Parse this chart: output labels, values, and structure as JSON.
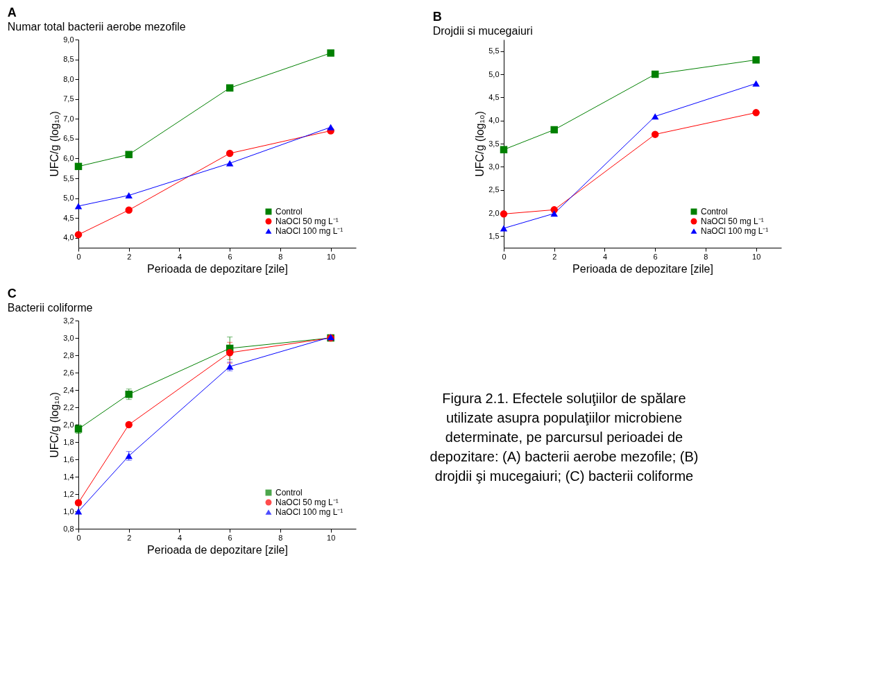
{
  "chart_data": [
    {
      "type": "line",
      "title": "Numar total bacterii aerobe mezofile",
      "annotations": [
        "A"
      ],
      "xlabel": "Perioada de depozitare [zile]",
      "ylabel": "UFC/g (log₁₀)",
      "x": [
        0,
        2,
        6,
        10
      ],
      "xlim": [
        0,
        11
      ],
      "xticks": [
        0,
        2,
        4,
        6,
        8,
        10
      ],
      "ylim": [
        3.75,
        9.0
      ],
      "yticks": [
        {
          "value": 4,
          "label": "4,0"
        },
        {
          "value": 4.5,
          "label": "4,5"
        },
        {
          "value": 5,
          "label": "5,0"
        },
        {
          "value": 5.5,
          "label": "5,5"
        },
        {
          "value": 6,
          "label": "6,0"
        },
        {
          "value": 6.5,
          "label": "6,5"
        },
        {
          "value": 7,
          "label": "7,0"
        },
        {
          "value": 7.5,
          "label": "7,5"
        },
        {
          "value": 8,
          "label": "8,0"
        },
        {
          "value": 8.5,
          "label": "8,5"
        },
        {
          "value": 9,
          "label": "9,0"
        }
      ],
      "grid": false,
      "legend": "bottom right",
      "line_style": "solid",
      "series": [
        {
          "name": "Control",
          "color": "#008000",
          "marker": "square",
          "values": [
            5.8,
            6.1,
            7.78,
            8.66
          ]
        },
        {
          "name": "NaOCl 50 mg L⁻¹",
          "color": "#ff0000",
          "marker": "circle",
          "values": [
            4.08,
            4.7,
            6.13,
            6.7
          ]
        },
        {
          "name": "NaOCl 100 mg L⁻¹",
          "color": "#0000ff",
          "marker": "triangle",
          "values": [
            4.8,
            5.07,
            5.88,
            6.79
          ]
        }
      ]
    },
    {
      "type": "line",
      "title": "Drojdii si mucegaiuri",
      "annotations": [
        "B"
      ],
      "xlabel": "Perioada de depozitare [zile]",
      "ylabel": "UFC/g (log₁₀)",
      "x": [
        0,
        2,
        6,
        10
      ],
      "xlim": [
        0,
        11
      ],
      "xticks": [
        0,
        2,
        4,
        6,
        8,
        10
      ],
      "ylim": [
        1.25,
        5.75
      ],
      "yticks": [
        {
          "value": 1.5,
          "label": "1,5"
        },
        {
          "value": 2,
          "label": "2,0"
        },
        {
          "value": 2.5,
          "label": "2,5"
        },
        {
          "value": 3,
          "label": "3,0"
        },
        {
          "value": 3.5,
          "label": "3,5"
        },
        {
          "value": 4,
          "label": "4,0"
        },
        {
          "value": 4.5,
          "label": "4,5"
        },
        {
          "value": 5,
          "label": "5,0"
        },
        {
          "value": 5.5,
          "label": "5,5"
        }
      ],
      "grid": false,
      "legend": "bottom right",
      "line_style": "solid",
      "series": [
        {
          "name": "Control",
          "color": "#008000",
          "marker": "square",
          "values": [
            3.37,
            3.8,
            5.0,
            5.31
          ]
        },
        {
          "name": "NaOCl 50 mg L⁻¹",
          "color": "#ff0000",
          "marker": "circle",
          "values": [
            1.98,
            2.07,
            3.7,
            4.17
          ]
        },
        {
          "name": "NaOCl 100 mg L⁻¹",
          "color": "#0000ff",
          "marker": "triangle",
          "values": [
            1.67,
            1.99,
            4.09,
            4.8
          ]
        }
      ]
    },
    {
      "type": "line",
      "title": "Bacterii coliforme",
      "annotations": [
        "C"
      ],
      "xlabel": "Perioada de depozitare [zile]",
      "ylabel": "UFC/g (log₁₀)",
      "x": [
        0,
        2,
        6,
        10
      ],
      "xlim": [
        0,
        11
      ],
      "xticks": [
        0,
        2,
        4,
        6,
        8,
        10
      ],
      "ylim": [
        0.8,
        3.2
      ],
      "yticks": [
        {
          "value": 0.8,
          "label": "0,8"
        },
        {
          "value": 1,
          "label": "1,0"
        },
        {
          "value": 1.2,
          "label": "1,2"
        },
        {
          "value": 1.4,
          "label": "1,4"
        },
        {
          "value": 1.6,
          "label": "1,6"
        },
        {
          "value": 1.8,
          "label": "1,8"
        },
        {
          "value": 2,
          "label": "2,0"
        },
        {
          "value": 2.2,
          "label": "2,2"
        },
        {
          "value": 2.4,
          "label": "2,4"
        },
        {
          "value": 2.6,
          "label": "2,6"
        },
        {
          "value": 2.8,
          "label": "2,8"
        },
        {
          "value": 3,
          "label": "3,0"
        },
        {
          "value": 3.2,
          "label": "3,2"
        }
      ],
      "grid": false,
      "legend": "bottom right",
      "line_style": "solid",
      "series": [
        {
          "name": "Control",
          "color": "#008000",
          "marker": "square",
          "values": [
            1.95,
            2.35,
            2.88,
            3.0
          ],
          "errors": [
            0.05,
            0.06,
            0.13,
            null
          ]
        },
        {
          "name": "NaOCl 50 mg L⁻¹",
          "color": "#ff0000",
          "marker": "circle",
          "values": [
            1.1,
            2.0,
            2.83,
            3.0
          ],
          "errors": [
            null,
            null,
            0.12,
            null
          ]
        },
        {
          "name": "NaOCl 100 mg L⁻¹",
          "color": "#0000ff",
          "marker": "triangle",
          "values": [
            1.0,
            1.64,
            2.67,
            3.01
          ],
          "errors": [
            null,
            0.05,
            0.05,
            null
          ]
        }
      ]
    },
    {
      "type": "other",
      "annotations": [
        "Figura 2.1. Efectele soluţiilor de spălare",
        "utilizate asupra populaţiilor microbiene",
        "determinate, pe parcursul perioadei de",
        "depozitare: (A) bacterii aerobe mezofile; (B)",
        "drojdii şi mucegaiuri; (C) bacterii coliforme"
      ]
    }
  ]
}
